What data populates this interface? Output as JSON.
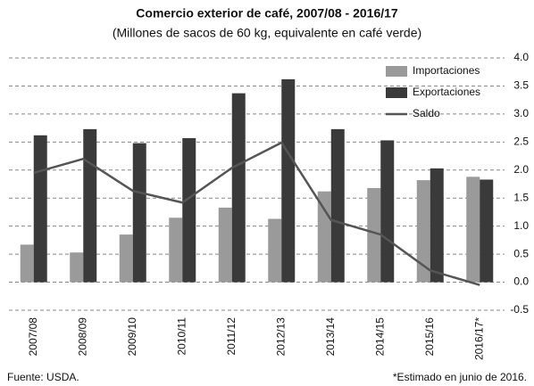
{
  "chart_data": {
    "type": "bar",
    "title": "Comercio exterior de café, 2007/08 - 2016/17",
    "subtitle": "(Millones de sacos de 60 kg, equivalente en café verde)",
    "categories": [
      "2007/08",
      "2008/09",
      "2009/10",
      "2010/11",
      "2011/12",
      "2012/13",
      "2013/14",
      "2014/15",
      "2015/16",
      "2016/17*"
    ],
    "series": [
      {
        "name": "Importaciones",
        "type": "bar",
        "color": "#9a9a9a",
        "values": [
          0.67,
          0.53,
          0.85,
          1.15,
          1.33,
          1.13,
          1.62,
          1.68,
          1.82,
          1.88
        ]
      },
      {
        "name": "Exportaciones",
        "type": "bar",
        "color": "#3a3a3a",
        "values": [
          2.62,
          2.73,
          2.48,
          2.57,
          3.37,
          3.62,
          2.73,
          2.53,
          2.03,
          1.83
        ]
      },
      {
        "name": "Saldo",
        "type": "line",
        "color": "#555555",
        "values": [
          1.95,
          2.2,
          1.63,
          1.42,
          2.04,
          2.49,
          1.11,
          0.85,
          0.21,
          -0.05
        ]
      }
    ],
    "ylim": [
      -0.5,
      4.0
    ],
    "yticks": [
      {
        "value": 4,
        "label": "4.0"
      },
      3.5,
      {
        "value": 3,
        "label": "3.0"
      },
      2.5,
      {
        "value": 2,
        "label": "2.0"
      },
      1.5,
      {
        "value": 1,
        "label": "1.0"
      },
      0.5,
      {
        "value": 0,
        "label": "0.0"
      },
      -0.5
    ],
    "grid": true,
    "legend_position": "upper right",
    "source": "Fuente: USDA.",
    "note": "*Estimado en junio de 2016."
  }
}
